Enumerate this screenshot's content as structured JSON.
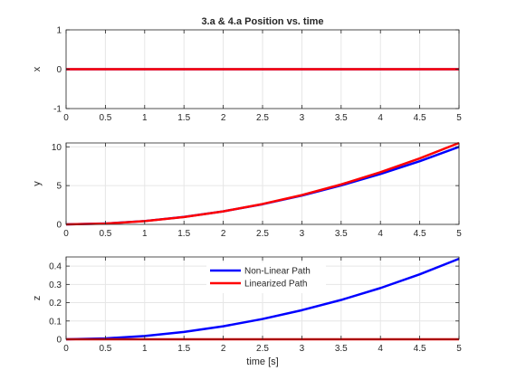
{
  "chart_data": [
    {
      "type": "line",
      "title": "3.a & 4.a Position vs. time",
      "xlabel": "",
      "ylabel": "x",
      "xlim": [
        0,
        5
      ],
      "ylim": [
        -1,
        1
      ],
      "xticks": [
        0,
        0.5,
        1,
        1.5,
        2,
        2.5,
        3,
        3.5,
        4,
        4.5,
        5
      ],
      "xtick_labels": [
        "0",
        "0.5",
        "1",
        "1.5",
        "2",
        "2.5",
        "3",
        "3.5",
        "4",
        "4.5",
        "5"
      ],
      "yticks": [
        -1,
        0,
        1
      ],
      "ytick_labels": [
        "-1",
        "0",
        "1"
      ],
      "grid": true,
      "series": [
        {
          "color": "#0000ff",
          "x": [
            0,
            5
          ],
          "y": [
            0,
            0
          ]
        },
        {
          "color": "#ff0000",
          "x": [
            0,
            5
          ],
          "y": [
            0,
            0
          ]
        }
      ]
    },
    {
      "type": "line",
      "title": "",
      "xlabel": "",
      "ylabel": "y",
      "xlim": [
        0,
        5
      ],
      "ylim": [
        0,
        10.5
      ],
      "xticks": [
        0,
        0.5,
        1,
        1.5,
        2,
        2.5,
        3,
        3.5,
        4,
        4.5,
        5
      ],
      "xtick_labels": [
        "0",
        "0.5",
        "1",
        "1.5",
        "2",
        "2.5",
        "3",
        "3.5",
        "4",
        "4.5",
        "5"
      ],
      "yticks": [
        0,
        5,
        10
      ],
      "ytick_labels": [
        "0",
        "5",
        "10"
      ],
      "grid": true,
      "series": [
        {
          "color": "#0000ff",
          "x": [
            0,
            0.5,
            1,
            1.5,
            2,
            2.5,
            3,
            3.5,
            4,
            4.5,
            5
          ],
          "y": [
            0,
            0.11,
            0.43,
            0.96,
            1.68,
            2.6,
            3.72,
            5.02,
            6.5,
            8.15,
            10.0
          ]
        },
        {
          "color": "#ff0000",
          "x": [
            0,
            0.5,
            1,
            1.5,
            2,
            2.5,
            3,
            3.5,
            4,
            4.5,
            5
          ],
          "y": [
            0,
            0.1,
            0.42,
            0.95,
            1.68,
            2.63,
            3.78,
            5.15,
            6.73,
            8.51,
            10.5
          ]
        }
      ]
    },
    {
      "type": "line",
      "title": "",
      "xlabel": "time [s]",
      "ylabel": "z",
      "xlim": [
        0,
        5
      ],
      "ylim": [
        0,
        0.45
      ],
      "xticks": [
        0,
        0.5,
        1,
        1.5,
        2,
        2.5,
        3,
        3.5,
        4,
        4.5,
        5
      ],
      "xtick_labels": [
        "0",
        "0.5",
        "1",
        "1.5",
        "2",
        "2.5",
        "3",
        "3.5",
        "4",
        "4.5",
        "5"
      ],
      "yticks": [
        0,
        0.1,
        0.2,
        0.3,
        0.4
      ],
      "ytick_labels": [
        "0",
        "0.1",
        "0.2",
        "0.3",
        "0.4"
      ],
      "grid": true,
      "legend_placement": "top-center",
      "series": [
        {
          "name": "Non-Linear Path",
          "color": "#0000ff",
          "x": [
            0,
            0.5,
            1,
            1.5,
            2,
            2.5,
            3,
            3.5,
            4,
            4.5,
            5
          ],
          "y": [
            0,
            0.005,
            0.018,
            0.04,
            0.071,
            0.111,
            0.159,
            0.215,
            0.28,
            0.355,
            0.44
          ]
        },
        {
          "name": "Linearized Path",
          "color": "#ff0000",
          "x": [
            0,
            5
          ],
          "y": [
            0,
            0
          ]
        }
      ]
    }
  ]
}
